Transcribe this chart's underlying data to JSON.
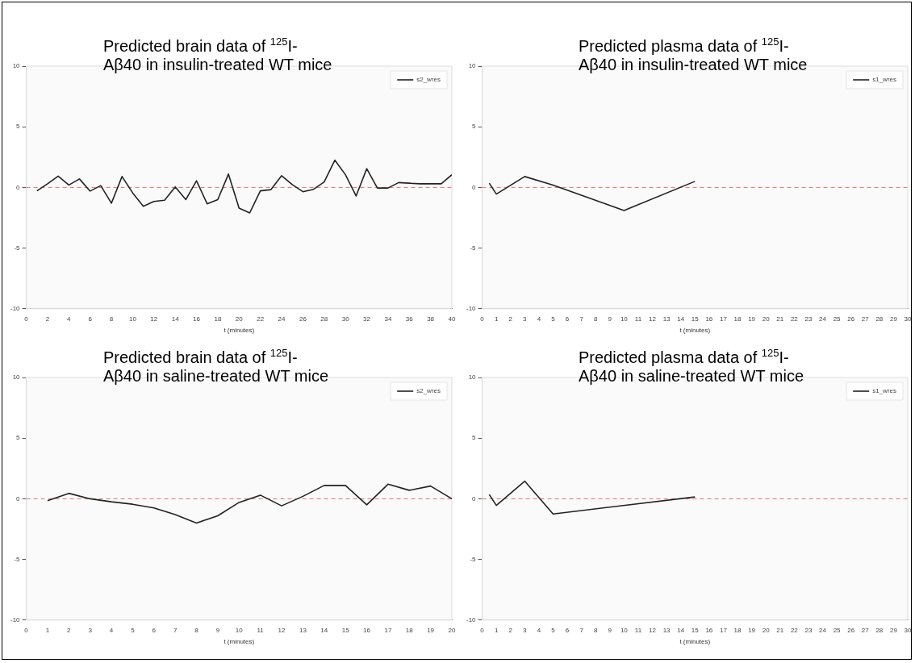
{
  "chart_data": [
    {
      "type": "line",
      "title": "Predicted brain data of $^{125}$I-Aβ40 in insulin-treated WT mice",
      "xlabel": "t (minutes)",
      "series": [
        {
          "name": "s2_wres",
          "color": "#222222",
          "x": [
            1,
            2,
            3,
            4,
            5,
            6,
            7,
            8,
            9,
            10,
            11,
            12,
            13,
            14,
            15,
            16,
            17,
            18,
            19,
            20,
            21,
            22,
            23,
            24,
            25,
            26,
            27,
            28,
            29,
            30,
            31,
            32,
            33,
            34,
            35,
            36,
            37,
            38,
            39,
            40
          ],
          "values": [
            -0.28,
            0.3,
            0.93,
            0.2,
            0.7,
            -0.3,
            0.15,
            -1.3,
            0.9,
            -0.45,
            -1.55,
            -1.15,
            -1.05,
            0.05,
            -1.0,
            0.55,
            -1.35,
            -1.0,
            1.1,
            -1.7,
            -2.1,
            -0.28,
            -0.18,
            0.97,
            0.23,
            -0.35,
            -0.15,
            0.45,
            2.25,
            1.05,
            -0.7,
            1.55,
            -0.05,
            -0.05,
            0.4,
            0.35,
            0.3,
            0.3,
            0.3,
            1.05
          ]
        }
      ],
      "xlim": [
        0,
        40
      ],
      "xticks": [
        0,
        2,
        4,
        6,
        8,
        10,
        12,
        14,
        16,
        18,
        20,
        22,
        24,
        26,
        28,
        30,
        32,
        34,
        36,
        38,
        40
      ],
      "ylim": [
        -10,
        10
      ],
      "yticks": [
        -10,
        -5,
        0,
        5,
        10
      ],
      "ref_lines": [
        {
          "axis": "y",
          "value": 0,
          "color": "#e07070",
          "line_style": "dashed"
        }
      ],
      "legend": "top right",
      "marker": "none",
      "line_style": "solid",
      "grid": false
    },
    {
      "type": "line",
      "title": "Predicted plasma data of $^{125}$I-Aβ40 in insulin-treated WT mice",
      "xlabel": "t (minutes)",
      "series": [
        {
          "name": "s1_wres",
          "color": "#222222",
          "x": [
            0.5,
            1,
            3,
            5,
            10,
            15
          ],
          "values": [
            0.35,
            -0.55,
            0.9,
            0.2,
            -1.9,
            0.5
          ]
        }
      ],
      "xlim": [
        0,
        30
      ],
      "xticks": [
        0,
        1,
        2,
        3,
        4,
        5,
        6,
        7,
        8,
        9,
        10,
        11,
        12,
        13,
        14,
        15,
        16,
        17,
        18,
        19,
        20,
        21,
        22,
        23,
        24,
        25,
        26,
        27,
        28,
        29,
        30
      ],
      "ylim": [
        -10,
        10
      ],
      "yticks": [
        -10,
        -5,
        0,
        5,
        10
      ],
      "ref_lines": [
        {
          "axis": "y",
          "value": 0,
          "color": "#e07070",
          "line_style": "dashed"
        }
      ],
      "legend": "top right",
      "marker": "none",
      "line_style": "solid",
      "grid": false
    },
    {
      "type": "line",
      "title": "Predicted brain data of $^{125}$I-Aβ40 in saline-treated WT mice",
      "xlabel": "t (minutes)",
      "series": [
        {
          "name": "s2_wres",
          "color": "#222222",
          "x": [
            1,
            2,
            3,
            4,
            5,
            6,
            7,
            8,
            9,
            10,
            11,
            12,
            13,
            14,
            15,
            16,
            17,
            18,
            19,
            20
          ],
          "values": [
            -0.15,
            0.45,
            0,
            -0.25,
            -0.45,
            -0.75,
            -1.3,
            -2.0,
            -1.4,
            -0.3,
            0.3,
            -0.58,
            0.2,
            1.1,
            1.1,
            -0.5,
            1.2,
            0.7,
            1.05,
            0
          ]
        }
      ],
      "xlim": [
        0,
        20
      ],
      "xticks": [
        0,
        1,
        2,
        3,
        4,
        5,
        6,
        7,
        8,
        9,
        10,
        11,
        12,
        13,
        14,
        15,
        16,
        17,
        18,
        19,
        20
      ],
      "ylim": [
        -10,
        10
      ],
      "yticks": [
        -10,
        -5,
        0,
        5,
        10
      ],
      "ref_lines": [
        {
          "axis": "y",
          "value": 0,
          "color": "#e07070",
          "line_style": "dashed"
        }
      ],
      "legend": "top right",
      "marker": "none",
      "line_style": "solid",
      "grid": false
    },
    {
      "type": "line",
      "title": "Predicted plasma data of $^{125}$I-Aβ40 in saline-treated WT mice",
      "xlabel": "t (minutes)",
      "series": [
        {
          "name": "s1_wres",
          "color": "#222222",
          "x": [
            0.5,
            1,
            3,
            5,
            15
          ],
          "values": [
            0.35,
            -0.55,
            1.45,
            -1.25,
            0.15
          ]
        }
      ],
      "xlim": [
        0,
        30
      ],
      "xticks": [
        0,
        1,
        2,
        3,
        4,
        5,
        6,
        7,
        8,
        9,
        10,
        11,
        12,
        13,
        14,
        15,
        16,
        17,
        18,
        19,
        20,
        21,
        22,
        23,
        24,
        25,
        26,
        27,
        28,
        29,
        30
      ],
      "ylim": [
        -10,
        10
      ],
      "yticks": [
        -10,
        -5,
        0,
        5,
        10
      ],
      "ref_lines": [
        {
          "axis": "y",
          "value": 0,
          "color": "#e07070",
          "line_style": "dashed"
        }
      ],
      "legend": "top right",
      "marker": "none",
      "line_style": "solid",
      "grid": false
    }
  ]
}
